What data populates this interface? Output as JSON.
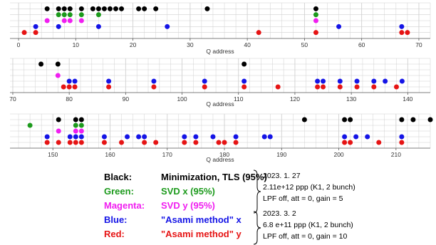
{
  "colors": {
    "black": "#000000",
    "green": "#1c9a1c",
    "magenta": "#f01ef0",
    "blue": "#1414e6",
    "red": "#e61414",
    "grid": "#d0d0d0",
    "axis": "#555555"
  },
  "chart_data": [
    {
      "type": "scatter",
      "xlabel": "Q address",
      "xlim": [
        -1.5,
        72
      ],
      "xticks": [
        0,
        10,
        20,
        30,
        40,
        50,
        60,
        70
      ],
      "series": [
        {
          "color": "black",
          "row": 5,
          "x": [
            5,
            7,
            8,
            9,
            11,
            13,
            14,
            15,
            16,
            17,
            18,
            21,
            22,
            24,
            33,
            52
          ]
        },
        {
          "color": "green",
          "row": 4,
          "x": [
            7,
            8,
            9,
            11,
            14,
            52
          ]
        },
        {
          "color": "magenta",
          "row": 3,
          "x": [
            5,
            8,
            9,
            11,
            52
          ]
        },
        {
          "color": "blue",
          "row": 2,
          "x": [
            3,
            7,
            14,
            26,
            56,
            67
          ]
        },
        {
          "color": "red",
          "row": 1,
          "x": [
            1,
            3,
            42,
            52,
            67,
            68
          ]
        }
      ]
    },
    {
      "type": "scatter",
      "xlabel": "Q address",
      "xlim": [
        69.5,
        144
      ],
      "xticks": [
        70,
        80,
        90,
        100,
        110,
        120,
        130,
        140
      ],
      "series": [
        {
          "color": "black",
          "row": 5,
          "x": [
            75,
            78,
            111
          ]
        },
        {
          "color": "green",
          "row": 4,
          "x": []
        },
        {
          "color": "magenta",
          "row": 3,
          "x": [
            78
          ]
        },
        {
          "color": "blue",
          "row": 2,
          "x": [
            80,
            81,
            87,
            95,
            104,
            111,
            124,
            125,
            128,
            131,
            134,
            136,
            139
          ]
        },
        {
          "color": "red",
          "row": 1,
          "x": [
            79,
            80,
            81,
            87,
            95,
            104,
            111,
            117,
            124,
            125,
            128,
            131,
            134,
            138
          ]
        }
      ]
    },
    {
      "type": "scatter",
      "xlabel": "Q address",
      "xlim": [
        142.5,
        216
      ],
      "xticks": [
        150,
        160,
        170,
        180,
        190,
        200,
        210
      ],
      "series": [
        {
          "color": "black",
          "row": 5,
          "x": [
            151,
            154,
            155,
            194,
            201,
            202,
            211,
            213,
            216
          ]
        },
        {
          "color": "green",
          "row": 4,
          "x": [
            146,
            154,
            155
          ]
        },
        {
          "color": "magenta",
          "row": 3,
          "x": [
            151,
            154,
            155
          ]
        },
        {
          "color": "blue",
          "row": 2,
          "x": [
            149,
            153,
            154,
            155,
            159,
            163,
            165,
            166,
            173,
            175,
            178,
            182,
            187,
            188,
            201,
            203,
            205,
            211
          ]
        },
        {
          "color": "red",
          "row": 1,
          "x": [
            149,
            151,
            153,
            154,
            155,
            159,
            162,
            166,
            168,
            173,
            175,
            179,
            180,
            182,
            201,
            202,
            207,
            211
          ]
        }
      ]
    }
  ],
  "legend": [
    {
      "key": "Black:",
      "label": "Minimization, TLS (95%)",
      "color": "black"
    },
    {
      "key": "Green:",
      "label": "SVD x (95%)",
      "color": "green"
    },
    {
      "key": "Magenta:",
      "label": "SVD y (95%)",
      "color": "magenta"
    },
    {
      "key": "Blue:",
      "label": "\"Asami method\" x",
      "color": "blue"
    },
    {
      "key": "Red:",
      "label": "\"Asami method\" y",
      "color": "red"
    }
  ],
  "info_groups": [
    {
      "lines": [
        "2023. 1. 27",
        "2.11e+12 ppp (K1, 2 bunch)",
        "LPF off, att = 0, gain = 5"
      ]
    },
    {
      "lines": [
        "2023. 3. 2",
        "6.8 e+11 ppp (K1, 2 bunch)",
        "LPF off, att = 0, gain = 10"
      ]
    }
  ]
}
